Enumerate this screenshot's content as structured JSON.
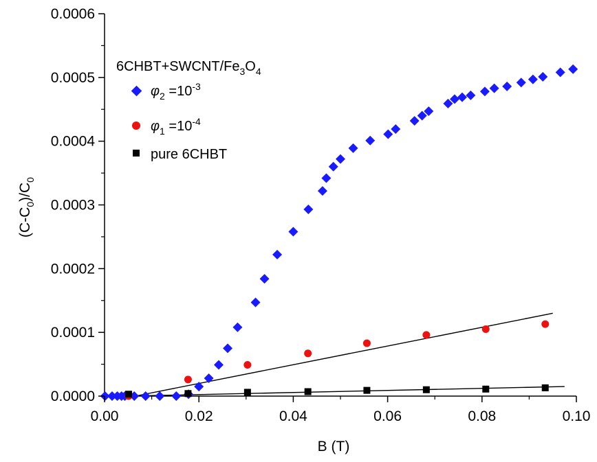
{
  "chart_data": {
    "type": "scatter",
    "xlabel": "B (T)",
    "ylabel": "(C-C0)/C0",
    "xlim": [
      0.0,
      0.1
    ],
    "ylim": [
      0.0,
      0.0006
    ],
    "x_ticks": [
      "0.00",
      "0.02",
      "0.04",
      "0.06",
      "0.08",
      "0.10"
    ],
    "y_ticks": [
      "0.0000",
      "0.0001",
      "0.0002",
      "0.0003",
      "0.0004",
      "0.0005",
      "0.0006"
    ],
    "legend_title": "6CHBT+SWCNT/Fe3O4",
    "legend_position": "top-left",
    "series": [
      {
        "name": "φ2 =10-3",
        "marker": "diamond",
        "color": "#1a1aff",
        "points": [
          [
            0.0001,
            0.0
          ],
          [
            0.0016,
            0.0
          ],
          [
            0.0027,
            0.0
          ],
          [
            0.0036,
            0.0
          ],
          [
            0.0043,
            0.0
          ],
          [
            0.0063,
            0.0
          ],
          [
            0.0087,
            0.0
          ],
          [
            0.0117,
            0.0
          ],
          [
            0.0152,
            0.0
          ],
          [
            0.0178,
            3e-06
          ],
          [
            0.02,
            1.5e-05
          ],
          [
            0.0221,
            2.8e-05
          ],
          [
            0.0242,
            4.9e-05
          ],
          [
            0.0261,
            7.5e-05
          ],
          [
            0.0282,
            0.000108
          ],
          [
            0.032,
            0.000147
          ],
          [
            0.0339,
            0.000184
          ],
          [
            0.0366,
            0.000222
          ],
          [
            0.04,
            0.000258
          ],
          [
            0.0432,
            0.000293
          ],
          [
            0.0462,
            0.000322
          ],
          [
            0.047,
            0.000342
          ],
          [
            0.0485,
            0.00036
          ],
          [
            0.05,
            0.000372
          ],
          [
            0.0527,
            0.000389
          ],
          [
            0.0563,
            0.000401
          ],
          [
            0.0601,
            0.000411
          ],
          [
            0.0617,
            0.000419
          ],
          [
            0.0657,
            0.000432
          ],
          [
            0.0673,
            0.00044
          ],
          [
            0.0687,
            0.000447
          ],
          [
            0.0728,
            0.000459
          ],
          [
            0.0742,
            0.000466
          ],
          [
            0.0758,
            0.000469
          ],
          [
            0.0776,
            0.000472
          ],
          [
            0.0806,
            0.000478
          ],
          [
            0.0826,
            0.000483
          ],
          [
            0.0853,
            0.000486
          ],
          [
            0.0883,
            0.000492
          ],
          [
            0.0908,
            0.000497
          ],
          [
            0.0929,
            0.000501
          ],
          [
            0.0966,
            0.000508
          ],
          [
            0.0993,
            0.000513
          ]
        ]
      },
      {
        "name": "φ1 =10-4",
        "marker": "circle",
        "color": "#ee1111",
        "points": [
          [
            0.0051,
            0.0
          ],
          [
            0.0177,
            2.6e-05
          ],
          [
            0.0303,
            4.9e-05
          ],
          [
            0.0431,
            6.7e-05
          ],
          [
            0.0556,
            8.3e-05
          ],
          [
            0.0682,
            9.6e-05
          ],
          [
            0.0808,
            0.000105
          ],
          [
            0.0934,
            0.000113
          ]
        ],
        "fit_line": [
          [
            0.0065,
            0.0
          ],
          [
            0.095,
            0.00013
          ]
        ]
      },
      {
        "name": "pure 6CHBT",
        "marker": "square",
        "color": "#000000",
        "points": [
          [
            0.0051,
            3e-06
          ],
          [
            0.0177,
            4e-06
          ],
          [
            0.0303,
            6e-06
          ],
          [
            0.0431,
            7e-06
          ],
          [
            0.0556,
            9e-06
          ],
          [
            0.0682,
            1e-05
          ],
          [
            0.0808,
            1.1e-05
          ],
          [
            0.0934,
            1.3e-05
          ]
        ],
        "fit_line": [
          [
            0.0051,
            0.0
          ],
          [
            0.0975,
            1.5e-05
          ]
        ]
      }
    ]
  }
}
